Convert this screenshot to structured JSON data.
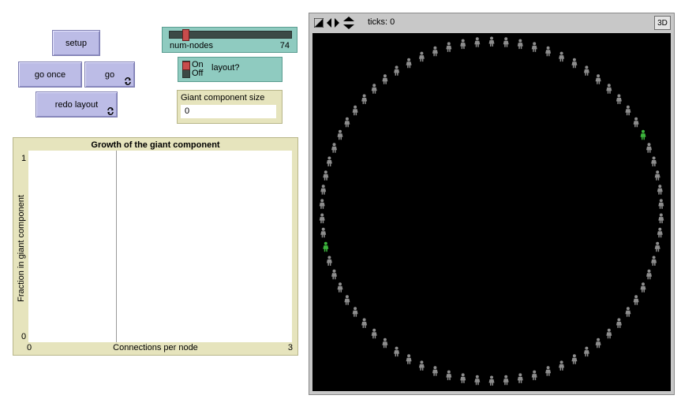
{
  "buttons": {
    "setup": "setup",
    "go_once": "go once",
    "go": "go",
    "redo_layout": "redo layout"
  },
  "slider": {
    "label": "num-nodes",
    "value": "74",
    "fraction": 0.11
  },
  "switch": {
    "on": "On",
    "off": "Off",
    "label": "layout?"
  },
  "monitor": {
    "label": "Giant component size",
    "value": "0"
  },
  "plot": {
    "title": "Growth of the giant component",
    "ylabel": "Fraction in giant component",
    "xlabel": "Connections per node",
    "xmin": "0",
    "xmax": "3",
    "ymin": "0",
    "ymax": "1"
  },
  "view": {
    "ticks_label": "ticks: 0",
    "three_d": "3D"
  },
  "turtles": {
    "count": 74,
    "green_indices": [
      13,
      53
    ]
  },
  "colors": {
    "button": "#bcbce6",
    "teal": "#8fcbc0",
    "plot_bg": "#e6e4bd",
    "turtle": "#8d8d8d",
    "turtle_green": "#3cb43c"
  }
}
